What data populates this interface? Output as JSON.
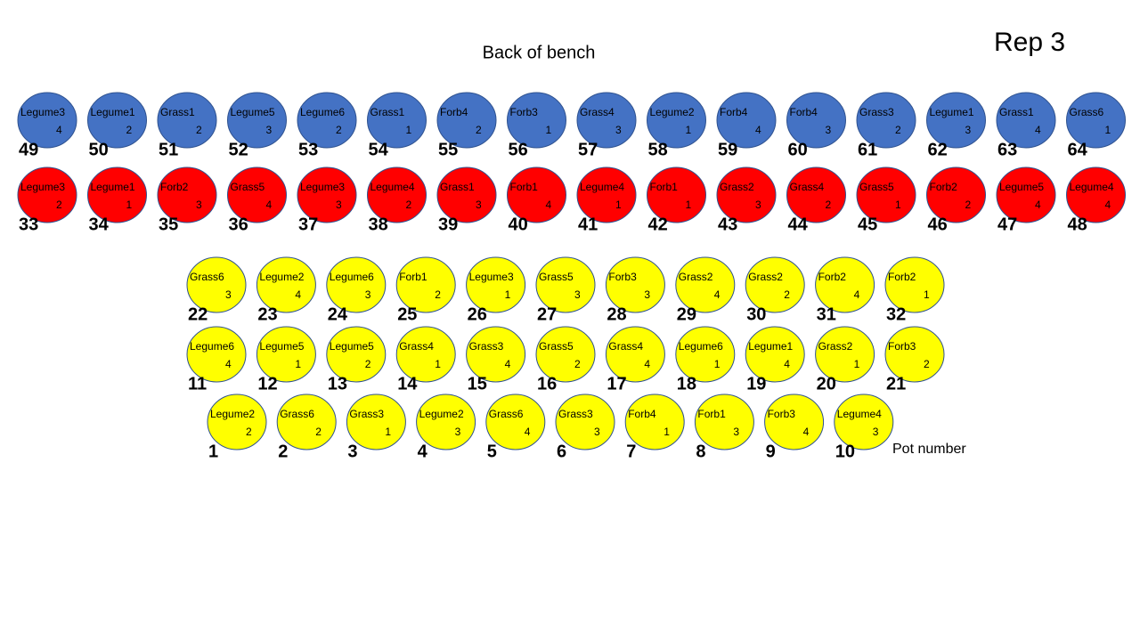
{
  "title": "Rep 3",
  "subtitle": "Back of bench",
  "pot_number_label": "Pot number",
  "rows": [
    {
      "color": "#4472c4",
      "pots": [
        {
          "label": "Legume3",
          "code": 4,
          "number": 49
        },
        {
          "label": "Legume1",
          "code": 2,
          "number": 50
        },
        {
          "label": "Grass1",
          "code": 2,
          "number": 51
        },
        {
          "label": "Legume5",
          "code": 3,
          "number": 52
        },
        {
          "label": "Legume6",
          "code": 2,
          "number": 53
        },
        {
          "label": "Grass1",
          "code": 1,
          "number": 54
        },
        {
          "label": "Forb4",
          "code": 2,
          "number": 55
        },
        {
          "label": "Forb3",
          "code": 1,
          "number": 56
        },
        {
          "label": "Grass4",
          "code": 3,
          "number": 57
        },
        {
          "label": "Legume2",
          "code": 1,
          "number": 58
        },
        {
          "label": "Forb4",
          "code": 4,
          "number": 59
        },
        {
          "label": "Forb4",
          "code": 3,
          "number": 60
        },
        {
          "label": "Grass3",
          "code": 2,
          "number": 61
        },
        {
          "label": "Legume1",
          "code": 3,
          "number": 62
        },
        {
          "label": "Grass1",
          "code": 4,
          "number": 63
        },
        {
          "label": "Grass6",
          "code": 1,
          "number": 64
        }
      ]
    },
    {
      "color": "#ff0000",
      "pots": [
        {
          "label": "Legume3",
          "code": 2,
          "number": 33
        },
        {
          "label": "Legume1",
          "code": 1,
          "number": 34
        },
        {
          "label": "Forb2",
          "code": 3,
          "number": 35
        },
        {
          "label": "Grass5",
          "code": 4,
          "number": 36
        },
        {
          "label": "Legume3",
          "code": 3,
          "number": 37
        },
        {
          "label": "Legume4",
          "code": 2,
          "number": 38
        },
        {
          "label": "Grass1",
          "code": 3,
          "number": 39
        },
        {
          "label": "Forb1",
          "code": 4,
          "number": 40
        },
        {
          "label": "Legume4",
          "code": 1,
          "number": 41
        },
        {
          "label": "Forb1",
          "code": 1,
          "number": 42
        },
        {
          "label": "Grass2",
          "code": 3,
          "number": 43
        },
        {
          "label": "Grass4",
          "code": 2,
          "number": 44
        },
        {
          "label": "Grass5",
          "code": 1,
          "number": 45
        },
        {
          "label": "Forb2",
          "code": 2,
          "number": 46
        },
        {
          "label": "Legume5",
          "code": 4,
          "number": 47
        },
        {
          "label": "Legume4",
          "code": 4,
          "number": 48
        }
      ]
    },
    {
      "color": "#ffff00",
      "pots": [
        {
          "label": "Grass6",
          "code": 3,
          "number": 22
        },
        {
          "label": "Legume2",
          "code": 4,
          "number": 23
        },
        {
          "label": "Legume6",
          "code": 3,
          "number": 24
        },
        {
          "label": "Forb1",
          "code": 2,
          "number": 25
        },
        {
          "label": "Legume3",
          "code": 1,
          "number": 26
        },
        {
          "label": "Grass5",
          "code": 3,
          "number": 27
        },
        {
          "label": "Forb3",
          "code": 3,
          "number": 28
        },
        {
          "label": "Grass2",
          "code": 4,
          "number": 29
        },
        {
          "label": "Grass2",
          "code": 2,
          "number": 30
        },
        {
          "label": "Forb2",
          "code": 4,
          "number": 31
        },
        {
          "label": "Forb2",
          "code": 1,
          "number": 32
        }
      ]
    },
    {
      "color": "#ffff00",
      "pots": [
        {
          "label": "Legume6",
          "code": 4,
          "number": 11
        },
        {
          "label": "Legume5",
          "code": 1,
          "number": 12
        },
        {
          "label": "Legume5",
          "code": 2,
          "number": 13
        },
        {
          "label": "Grass4",
          "code": 1,
          "number": 14
        },
        {
          "label": "Grass3",
          "code": 4,
          "number": 15
        },
        {
          "label": "Grass5",
          "code": 2,
          "number": 16
        },
        {
          "label": "Grass4",
          "code": 4,
          "number": 17
        },
        {
          "label": "Legume6",
          "code": 1,
          "number": 18
        },
        {
          "label": "Legume1",
          "code": 4,
          "number": 19
        },
        {
          "label": "Grass2",
          "code": 1,
          "number": 20
        },
        {
          "label": "Forb3",
          "code": 2,
          "number": 21
        }
      ]
    },
    {
      "color": "#ffff00",
      "pots": [
        {
          "label": "Legume2",
          "code": 2,
          "number": 1
        },
        {
          "label": "Grass6",
          "code": 2,
          "number": 2
        },
        {
          "label": "Grass3",
          "code": 1,
          "number": 3
        },
        {
          "label": "Legume2",
          "code": 3,
          "number": 4
        },
        {
          "label": "Grass6",
          "code": 4,
          "number": 5
        },
        {
          "label": "Grass3",
          "code": 3,
          "number": 6
        },
        {
          "label": "Forb4",
          "code": 1,
          "number": 7
        },
        {
          "label": "Forb1",
          "code": 3,
          "number": 8
        },
        {
          "label": "Forb3",
          "code": 4,
          "number": 9
        },
        {
          "label": "Legume4",
          "code": 3,
          "number": 10
        }
      ]
    }
  ]
}
